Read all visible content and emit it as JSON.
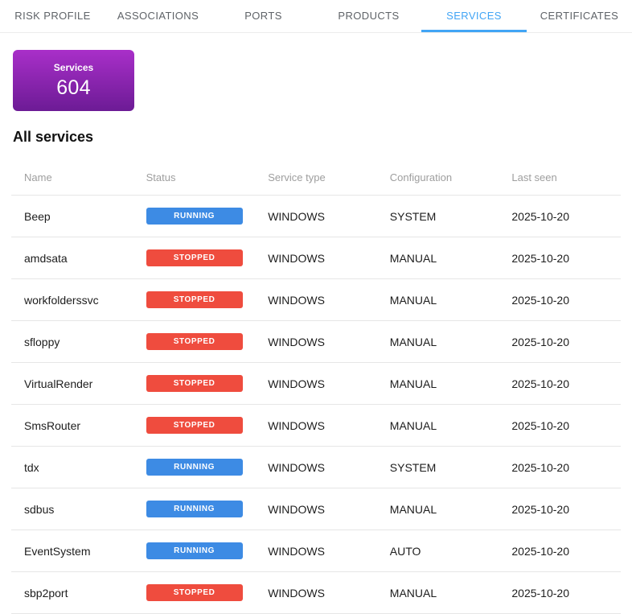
{
  "tabs": {
    "items": [
      {
        "label": "RISK PROFILE",
        "active": false
      },
      {
        "label": "ASSOCIATIONS",
        "active": false
      },
      {
        "label": "PORTS",
        "active": false
      },
      {
        "label": "PRODUCTS",
        "active": false
      },
      {
        "label": "SERVICES",
        "active": true
      },
      {
        "label": "CERTIFICATES",
        "active": false
      }
    ],
    "active_color": "#42a5f5"
  },
  "summary_card": {
    "label": "Services",
    "value": "604",
    "gradient_top": "#a92fc9",
    "gradient_bottom": "#6c1b95"
  },
  "section": {
    "title": "All services"
  },
  "table": {
    "columns": [
      "Name",
      "Status",
      "Service type",
      "Configuration",
      "Last seen"
    ],
    "status_colors": {
      "RUNNING": "#3d8be4",
      "STOPPED": "#ef4c3e"
    },
    "rows": [
      {
        "name": "Beep",
        "status": "RUNNING",
        "service_type": "WINDOWS",
        "configuration": "SYSTEM",
        "last_seen": "2025-10-20"
      },
      {
        "name": "amdsata",
        "status": "STOPPED",
        "service_type": "WINDOWS",
        "configuration": "MANUAL",
        "last_seen": "2025-10-20"
      },
      {
        "name": "workfolderssvc",
        "status": "STOPPED",
        "service_type": "WINDOWS",
        "configuration": "MANUAL",
        "last_seen": "2025-10-20"
      },
      {
        "name": "sfloppy",
        "status": "STOPPED",
        "service_type": "WINDOWS",
        "configuration": "MANUAL",
        "last_seen": "2025-10-20"
      },
      {
        "name": "VirtualRender",
        "status": "STOPPED",
        "service_type": "WINDOWS",
        "configuration": "MANUAL",
        "last_seen": "2025-10-20"
      },
      {
        "name": "SmsRouter",
        "status": "STOPPED",
        "service_type": "WINDOWS",
        "configuration": "MANUAL",
        "last_seen": "2025-10-20"
      },
      {
        "name": "tdx",
        "status": "RUNNING",
        "service_type": "WINDOWS",
        "configuration": "SYSTEM",
        "last_seen": "2025-10-20"
      },
      {
        "name": "sdbus",
        "status": "RUNNING",
        "service_type": "WINDOWS",
        "configuration": "MANUAL",
        "last_seen": "2025-10-20"
      },
      {
        "name": "EventSystem",
        "status": "RUNNING",
        "service_type": "WINDOWS",
        "configuration": "AUTO",
        "last_seen": "2025-10-20"
      },
      {
        "name": "sbp2port",
        "status": "STOPPED",
        "service_type": "WINDOWS",
        "configuration": "MANUAL",
        "last_seen": "2025-10-20"
      }
    ]
  }
}
